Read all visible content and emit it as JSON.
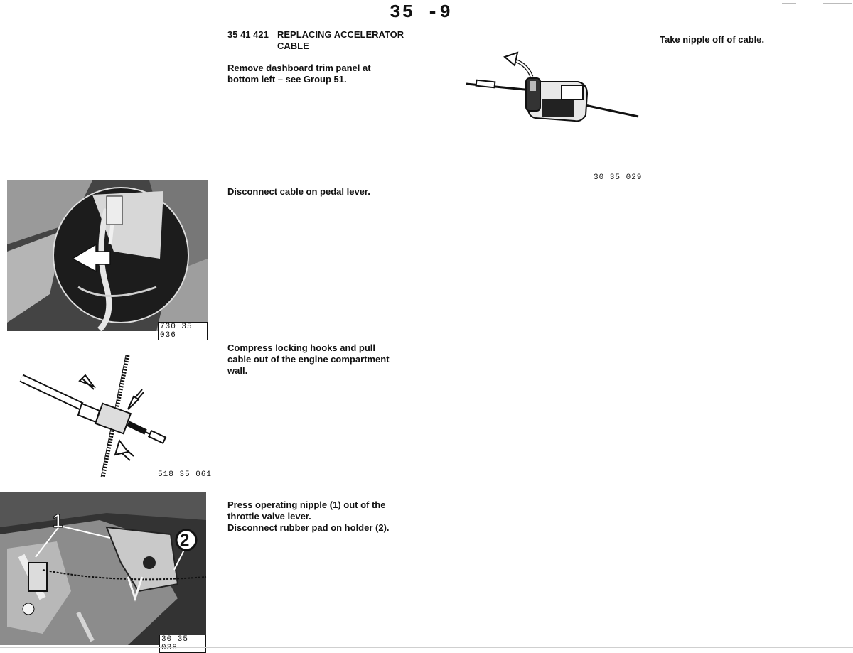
{
  "header": {
    "page_number": "35 -9"
  },
  "section": {
    "code": "35 41 421",
    "title_line1": "REPLACING ACCELERATOR",
    "title_line2": "CABLE"
  },
  "steps": [
    {
      "lines": [
        "Remove dashboard trim panel at",
        "bottom left – see Group 51."
      ]
    },
    {
      "lines": [
        "Disconnect cable on pedal lever."
      ]
    },
    {
      "lines": [
        "Compress locking hooks and pull",
        "cable out of the engine compartment",
        "wall."
      ]
    },
    {
      "lines": [
        "Press operating nipple (1) out of the",
        "throttle valve lever.",
        "Disconnect rubber pad on holder (2)."
      ]
    }
  ],
  "right_note": "Take nipple off of cable.",
  "figures": {
    "nipple_cable": {
      "label": "30 35 029"
    },
    "pedal_lever": {
      "label": "730 35 036"
    },
    "locking_hooks": {
      "label": "518 35 061"
    },
    "throttle_valve": {
      "label": "30 35 038",
      "callout_1": "1",
      "callout_2": "2"
    }
  }
}
